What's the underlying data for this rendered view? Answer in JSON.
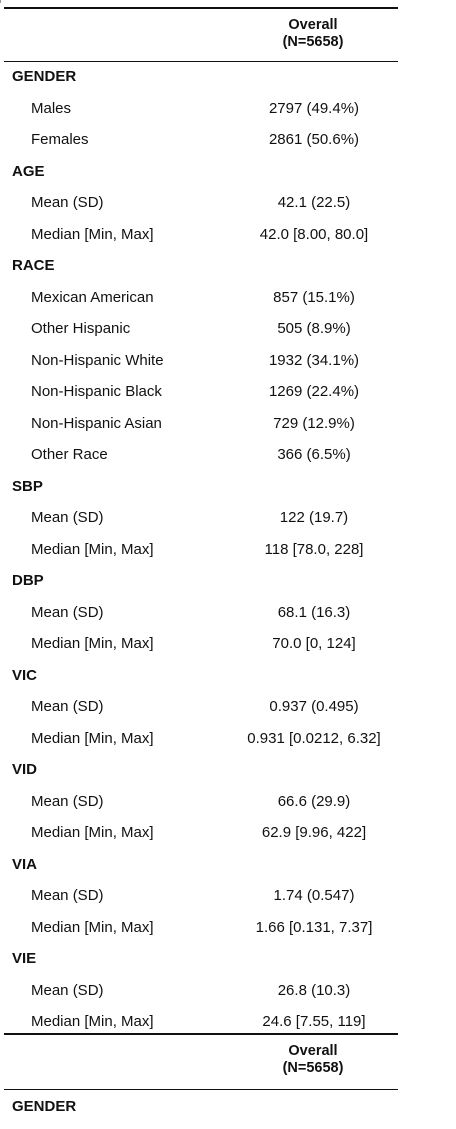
{
  "header": {
    "overall": "Overall",
    "n": "(N=5658)"
  },
  "rows": [
    {
      "kind": "section",
      "label": "GENDER"
    },
    {
      "kind": "item",
      "label": "Males",
      "value": "2797 (49.4%)"
    },
    {
      "kind": "item",
      "label": "Females",
      "value": "2861 (50.6%)"
    },
    {
      "kind": "section",
      "label": "AGE"
    },
    {
      "kind": "item",
      "label": "Mean (SD)",
      "value": "42.1 (22.5)"
    },
    {
      "kind": "item",
      "label": "Median [Min, Max]",
      "value": "42.0 [8.00, 80.0]"
    },
    {
      "kind": "section",
      "label": "RACE"
    },
    {
      "kind": "item",
      "label": "Mexican American",
      "value": "857 (15.1%)"
    },
    {
      "kind": "item",
      "label": "Other Hispanic",
      "value": "505 (8.9%)"
    },
    {
      "kind": "item",
      "label": "Non-Hispanic White",
      "value": "1932 (34.1%)"
    },
    {
      "kind": "item",
      "label": "Non-Hispanic Black",
      "value": "1269 (22.4%)"
    },
    {
      "kind": "item",
      "label": "Non-Hispanic Asian",
      "value": "729 (12.9%)"
    },
    {
      "kind": "item",
      "label": "Other Race",
      "value": "366 (6.5%)"
    },
    {
      "kind": "section",
      "label": "SBP"
    },
    {
      "kind": "item",
      "label": "Mean (SD)",
      "value": "122 (19.7)"
    },
    {
      "kind": "item",
      "label": "Median [Min, Max]",
      "value": "118 [78.0, 228]"
    },
    {
      "kind": "section",
      "label": "DBP"
    },
    {
      "kind": "item",
      "label": "Mean (SD)",
      "value": "68.1 (16.3)"
    },
    {
      "kind": "item",
      "label": "Median [Min, Max]",
      "value": "70.0 [0, 124]"
    },
    {
      "kind": "section",
      "label": "VIC"
    },
    {
      "kind": "item",
      "label": "Mean (SD)",
      "value": "0.937 (0.495)"
    },
    {
      "kind": "item",
      "label": "Median [Min, Max]",
      "value": "0.931 [0.0212, 6.32]"
    },
    {
      "kind": "section",
      "label": "VID"
    },
    {
      "kind": "item",
      "label": "Mean (SD)",
      "value": "66.6 (29.9)"
    },
    {
      "kind": "item",
      "label": "Median [Min, Max]",
      "value": "62.9 [9.96, 422]"
    },
    {
      "kind": "section",
      "label": "VIA"
    },
    {
      "kind": "item",
      "label": "Mean (SD)",
      "value": "1.74 (0.547)"
    },
    {
      "kind": "item",
      "label": "Median [Min, Max]",
      "value": "1.66 [0.131, 7.37]"
    },
    {
      "kind": "section",
      "label": "VIE"
    },
    {
      "kind": "item",
      "label": "Mean (SD)",
      "value": "26.8 (10.3)"
    },
    {
      "kind": "item",
      "label": "Median [Min, Max]",
      "value": "24.6 [7.55, 119]"
    }
  ],
  "repeat": {
    "header": {
      "overall": "Overall",
      "n": "(N=5658)"
    },
    "first_section": "GENDER"
  }
}
